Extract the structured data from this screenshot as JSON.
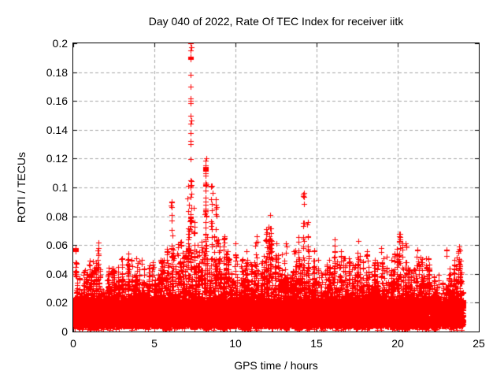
{
  "chart_data": {
    "type": "scatter",
    "title": "Day 040 of 2022, Rate Of TEC Index for receiver iitk",
    "xlabel": "GPS time / hours",
    "ylabel": "ROTI / TECUs",
    "xlim": [
      0,
      25
    ],
    "ylim": [
      0,
      0.2
    ],
    "xticks": [
      {
        "v": 0,
        "label": "0"
      },
      {
        "v": 5,
        "label": "5"
      },
      {
        "v": 10,
        "label": "10"
      },
      {
        "v": 15,
        "label": "15"
      },
      {
        "v": 20,
        "label": "20"
      },
      {
        "v": 25,
        "label": "25"
      }
    ],
    "yticks": [
      {
        "v": 0,
        "label": "0"
      },
      {
        "v": 0.02,
        "label": "0.02"
      },
      {
        "v": 0.04,
        "label": "0.04"
      },
      {
        "v": 0.06,
        "label": "0.06"
      },
      {
        "v": 0.08,
        "label": "0.08"
      },
      {
        "v": 0.1,
        "label": "0.1"
      },
      {
        "v": 0.12,
        "label": "0.12"
      },
      {
        "v": 0.14,
        "label": "0.14"
      },
      {
        "v": 0.16,
        "label": "0.16"
      },
      {
        "v": 0.18,
        "label": "0.18"
      },
      {
        "v": 0.2,
        "label": "0.2"
      }
    ],
    "grid": true,
    "legend": "none",
    "marker": "plus",
    "marker_size": 7,
    "color": "#ff0000",
    "grid_color": "#a6a6a6",
    "axis_color": "#000000",
    "time_coverage_hours": [
      0,
      24.05
    ],
    "model": {
      "seed": 1337,
      "baseline_band": {
        "min": 0.0035,
        "max": 0.022,
        "n": 13000,
        "pow": 1.15
      },
      "under_hairs": {
        "min": 0.0008,
        "max": 0.0045,
        "n": 260
      },
      "grass": {
        "clumps": 360,
        "pts_per_clump": 17,
        "floor": 0.016,
        "jitter_t": 0.028,
        "pow": 1.8,
        "envelope_step": 0.5,
        "envelope": [
          0.032,
          0.036,
          0.04,
          0.045,
          0.038,
          0.036,
          0.044,
          0.042,
          0.044,
          0.04,
          0.042,
          0.046,
          0.05,
          0.052,
          0.058,
          0.056,
          0.054,
          0.058,
          0.056,
          0.05,
          0.046,
          0.046,
          0.05,
          0.052,
          0.058,
          0.052,
          0.05,
          0.046,
          0.054,
          0.05,
          0.042,
          0.04,
          0.046,
          0.046,
          0.046,
          0.05,
          0.048,
          0.044,
          0.046,
          0.04,
          0.05,
          0.048,
          0.046,
          0.044,
          0.04,
          0.034,
          0.034,
          0.046,
          0.046
        ]
      },
      "spikes": [
        [
          0.15,
          0.035,
          0.048,
          12
        ],
        [
          1.0,
          0.03,
          0.049,
          10
        ],
        [
          1.55,
          0.03,
          0.062,
          12
        ],
        [
          2.2,
          0.028,
          0.042,
          8
        ],
        [
          3.0,
          0.03,
          0.051,
          10
        ],
        [
          3.4,
          0.03,
          0.047,
          8
        ],
        [
          3.9,
          0.03,
          0.051,
          10
        ],
        [
          4.7,
          0.03,
          0.046,
          8
        ],
        [
          5.4,
          0.03,
          0.05,
          10
        ],
        [
          6.07,
          0.038,
          0.09,
          16
        ],
        [
          6.6,
          0.035,
          0.062,
          10
        ],
        [
          7.1,
          0.05,
          0.101,
          14
        ],
        [
          7.24,
          0.035,
          0.105,
          25
        ],
        [
          7.45,
          0.04,
          0.086,
          14
        ],
        [
          8.16,
          0.05,
          0.09,
          14
        ],
        [
          8.55,
          0.05,
          0.101,
          16
        ],
        [
          8.8,
          0.04,
          0.092,
          14
        ],
        [
          9.3,
          0.03,
          0.066,
          10
        ],
        [
          10.0,
          0.03,
          0.061,
          10
        ],
        [
          10.7,
          0.03,
          0.056,
          8
        ],
        [
          11.3,
          0.03,
          0.066,
          10
        ],
        [
          11.9,
          0.035,
          0.071,
          10
        ],
        [
          12.15,
          0.04,
          0.081,
          14
        ],
        [
          12.5,
          0.03,
          0.061,
          8
        ],
        [
          13.1,
          0.03,
          0.061,
          8
        ],
        [
          13.6,
          0.03,
          0.056,
          8
        ],
        [
          14.2,
          0.04,
          0.096,
          20
        ],
        [
          14.45,
          0.04,
          0.076,
          12
        ],
        [
          15.1,
          0.03,
          0.05,
          8
        ],
        [
          15.8,
          0.03,
          0.05,
          8
        ],
        [
          16.1,
          0.035,
          0.064,
          6
        ],
        [
          16.5,
          0.03,
          0.056,
          8
        ],
        [
          17.0,
          0.03,
          0.051,
          8
        ],
        [
          17.55,
          0.035,
          0.063,
          10
        ],
        [
          18.1,
          0.03,
          0.056,
          8
        ],
        [
          18.6,
          0.03,
          0.05,
          8
        ],
        [
          19.0,
          0.03,
          0.058,
          8
        ],
        [
          19.6,
          0.03,
          0.05,
          8
        ],
        [
          20.1,
          0.035,
          0.068,
          12
        ],
        [
          20.5,
          0.03,
          0.061,
          10
        ],
        [
          21.2,
          0.03,
          0.057,
          8
        ],
        [
          21.9,
          0.03,
          0.051,
          8
        ],
        [
          23.0,
          0.052,
          0.057,
          3
        ],
        [
          23.5,
          0.03,
          0.05,
          8
        ],
        [
          23.8,
          0.035,
          0.059,
          10
        ]
      ],
      "columns": [
        {
          "t": 7.24,
          "values": [
            0.2,
            0.1975,
            0.195,
            0.178,
            0.17,
            0.1615,
            0.16,
            0.1585,
            0.15,
            0.1465,
            0.144,
            0.1375,
            0.132,
            0.13,
            0.1195,
            0.105,
            0.101,
            0.0955
          ]
        },
        {
          "t": 8.16,
          "values": [
            0.12,
            0.1185,
            0.1155,
            0.114,
            0.1125,
            0.11,
            0.108,
            0.1035,
            0.102,
            0.098,
            0.093,
            0.088,
            0.084,
            0.08,
            0.076,
            0.072,
            0.068,
            0.064,
            0.06,
            0.056
          ]
        }
      ],
      "clusters": [
        [
          0.15,
          0.057,
          12
        ],
        [
          7.24,
          0.1895,
          9
        ],
        [
          8.16,
          0.113,
          6
        ],
        [
          8.18,
          0.102,
          5
        ]
      ]
    }
  }
}
